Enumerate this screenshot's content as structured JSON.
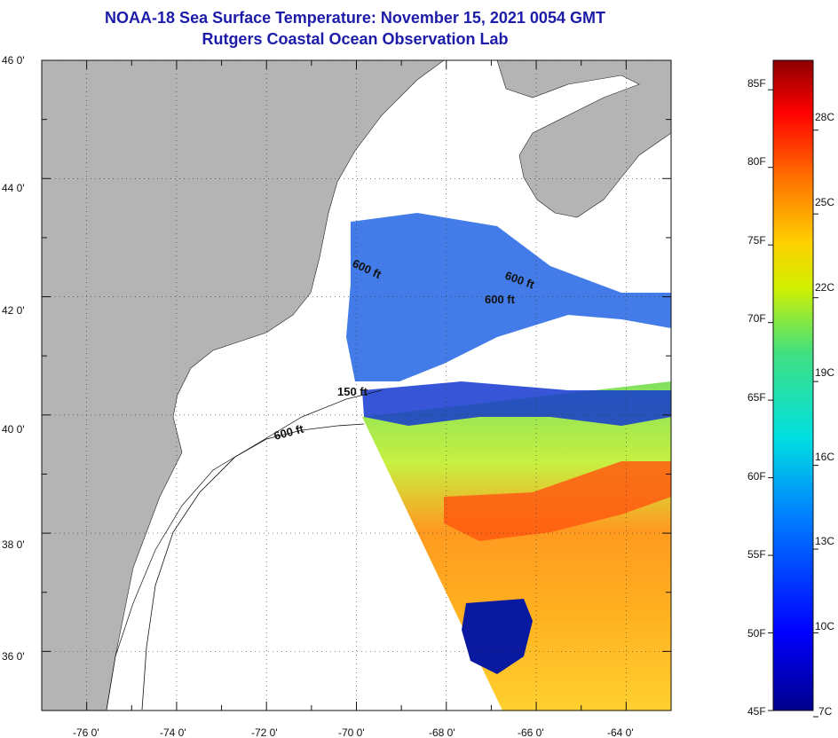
{
  "header": {
    "title": "NOAA-18 Sea Surface Temperature:  November 15, 2021 0054 GMT",
    "subtitle": "Rutgers Coastal Ocean Observation Lab"
  },
  "map": {
    "lat_labels": [
      "46 0'",
      "44 0'",
      "42 0'",
      "40 0'",
      "38 0'",
      "36 0'"
    ],
    "lon_labels": [
      "-76 0'",
      "-74 0'",
      "-72 0'",
      "-70 0'",
      "-68 0'",
      "-66 0'",
      "-64 0'"
    ],
    "lat_range": [
      35,
      46
    ],
    "lon_range": [
      -77,
      -63
    ],
    "contour_labels": [
      "600 ft",
      "600 ft",
      "600 ft",
      "150 ft",
      "600 ft"
    ]
  },
  "colorbar": {
    "fahrenheit_labels": [
      "85F",
      "80F",
      "75F",
      "70F",
      "65F",
      "60F",
      "55F",
      "50F",
      "45F"
    ],
    "celsius_labels": [
      "28C",
      "25C",
      "22C",
      "19C",
      "16C",
      "13C",
      "10C",
      "7C"
    ],
    "range_celsius": [
      7,
      29.4
    ]
  },
  "colors": {
    "title": "#1c1ca8",
    "land": "#b4b4b4",
    "cloud": "#ffffff",
    "cold": "#00008b",
    "warm": "#8b0000"
  }
}
